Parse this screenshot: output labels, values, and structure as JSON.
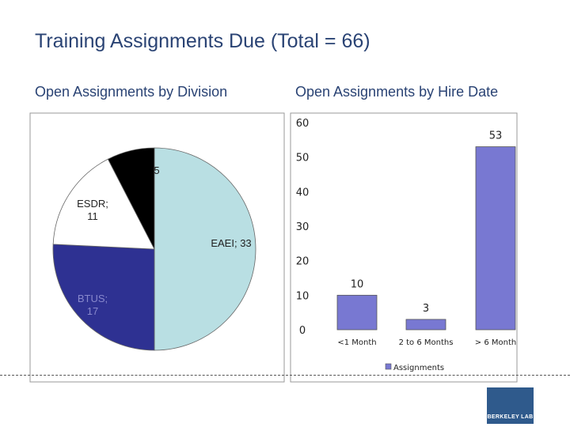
{
  "slide_title": "Training Assignments Due (Total = 66)",
  "left_subtitle": "Open Assignments by Division",
  "right_subtitle": "Open Assignments by Hire Date",
  "logo_text": "BERKELEY LAB",
  "chart_data": [
    {
      "type": "pie",
      "title": "Open Assignments by Division",
      "slices": [
        {
          "label": "EAEI",
          "value": 33,
          "display": "EAEI; 33",
          "color": "#b9dfe3"
        },
        {
          "label": "BTUS",
          "value": 17,
          "display": "BTUS; 17",
          "color": "#2e3192"
        },
        {
          "label": "ESDR",
          "value": 11,
          "display": "ESDR; 11",
          "color": "#ffffff"
        },
        {
          "label": "",
          "value": 5,
          "display": "5",
          "color": "#000000"
        }
      ]
    },
    {
      "type": "bar",
      "title": "Open Assignments by Hire Date",
      "categories": [
        "<1 Month",
        "2 to 6 Months",
        "> 6 Month"
      ],
      "series": [
        {
          "name": "Assignments",
          "values": [
            10,
            3,
            53
          ],
          "color": "#7878d2"
        }
      ],
      "ylim": [
        0,
        60
      ],
      "yticks": [
        "0",
        "10",
        "20",
        "30",
        "40",
        "50",
        "60"
      ],
      "legend": "bottom"
    }
  ]
}
